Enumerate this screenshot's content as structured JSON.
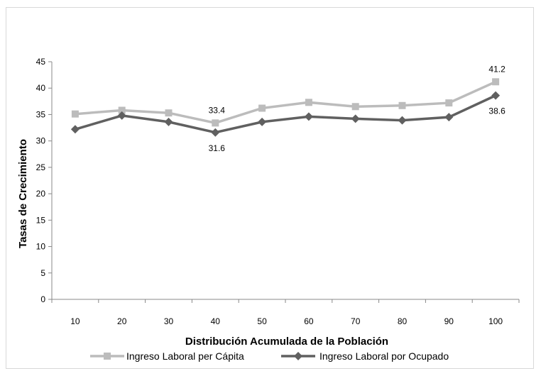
{
  "chart_data": {
    "type": "line",
    "title": "",
    "xlabel": "Distribución Acumulada de la Población",
    "ylabel": "Tasas de Crecimiento",
    "x": [
      10,
      20,
      30,
      40,
      50,
      60,
      70,
      80,
      90,
      100
    ],
    "ylim": [
      0,
      45
    ],
    "yticks": [
      0,
      5,
      10,
      15,
      20,
      25,
      30,
      35,
      40,
      45
    ],
    "grid": false,
    "legend_position": "bottom",
    "series": [
      {
        "name": "Ingreso Laboral per Cápita",
        "color": "#bcbcbc",
        "marker": "square",
        "values": [
          35.1,
          35.8,
          35.3,
          33.4,
          36.2,
          37.3,
          36.5,
          36.7,
          37.2,
          41.2
        ]
      },
      {
        "name": "Ingreso Laboral por Ocupado",
        "color": "#606060",
        "marker": "diamond",
        "values": [
          32.2,
          34.8,
          33.6,
          31.6,
          33.6,
          34.6,
          34.2,
          33.9,
          34.5,
          38.6
        ]
      }
    ],
    "annotations": [
      {
        "series": 0,
        "index": 3,
        "text": "33.4"
      },
      {
        "series": 0,
        "index": 9,
        "text": "41.2"
      },
      {
        "series": 1,
        "index": 3,
        "text": "31.6"
      },
      {
        "series": 1,
        "index": 9,
        "text": "38.6"
      }
    ]
  }
}
